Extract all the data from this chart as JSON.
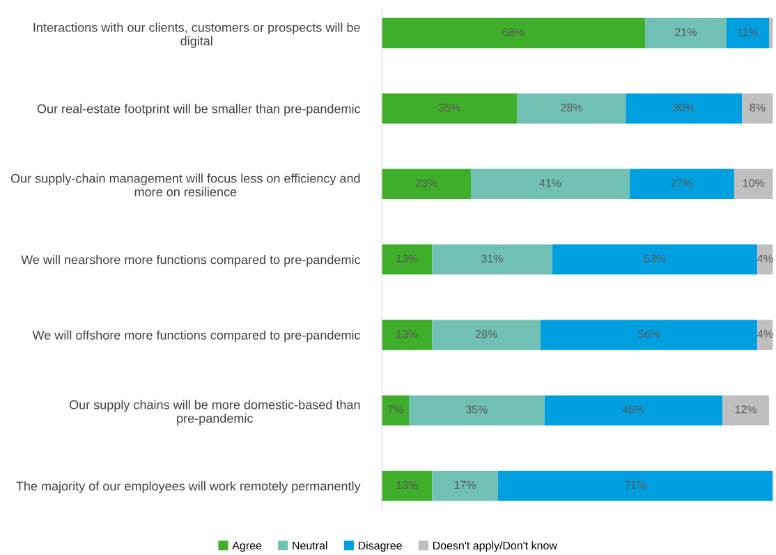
{
  "chart_data": {
    "type": "bar",
    "orientation": "horizontal",
    "stacked": true,
    "categories": [
      "Interactions with our clients, customers or prospects will be digital",
      "Our real-estate footprint will be smaller than pre-pandemic",
      "Our supply-chain management will focus less on efficiency and more on resilience",
      "We will nearshore more functions compared to pre-pandemic",
      "We will offshore more functions compared to pre-pandemic",
      "Our supply chains will be more domestic-based than pre-pandemic",
      "The majority of our employees will work remotely permanently"
    ],
    "series": [
      {
        "name": "Agree",
        "color": "#3fae2a",
        "values": [
          68,
          35,
          23,
          13,
          13,
          7,
          13
        ],
        "value_labels": [
          "68%",
          "35%",
          "23%",
          "13%",
          "13%",
          "7%",
          "13%"
        ]
      },
      {
        "name": "Neutral",
        "color": "#70c1b3",
        "values": [
          21,
          28,
          41,
          31,
          28,
          35,
          17
        ],
        "value_labels": [
          "21%",
          "28%",
          "41%",
          "31%",
          "28%",
          "35%",
          "17%"
        ]
      },
      {
        "name": "Disagree",
        "color": "#00a0e0",
        "values": [
          11,
          30,
          27,
          53,
          56,
          46,
          71
        ],
        "value_labels": [
          "11%",
          "30%",
          "27%",
          "53%",
          "56%",
          "46%",
          "71%"
        ]
      },
      {
        "name": "Doesn't apply/Don't know",
        "color": "#bfbfbf",
        "values": [
          1,
          8,
          10,
          4,
          4,
          12,
          null
        ],
        "value_labels": [
          null,
          "8%",
          "10%",
          "4%",
          "4%",
          "12%",
          null
        ]
      }
    ],
    "legend": "bottom",
    "grid": false
  }
}
